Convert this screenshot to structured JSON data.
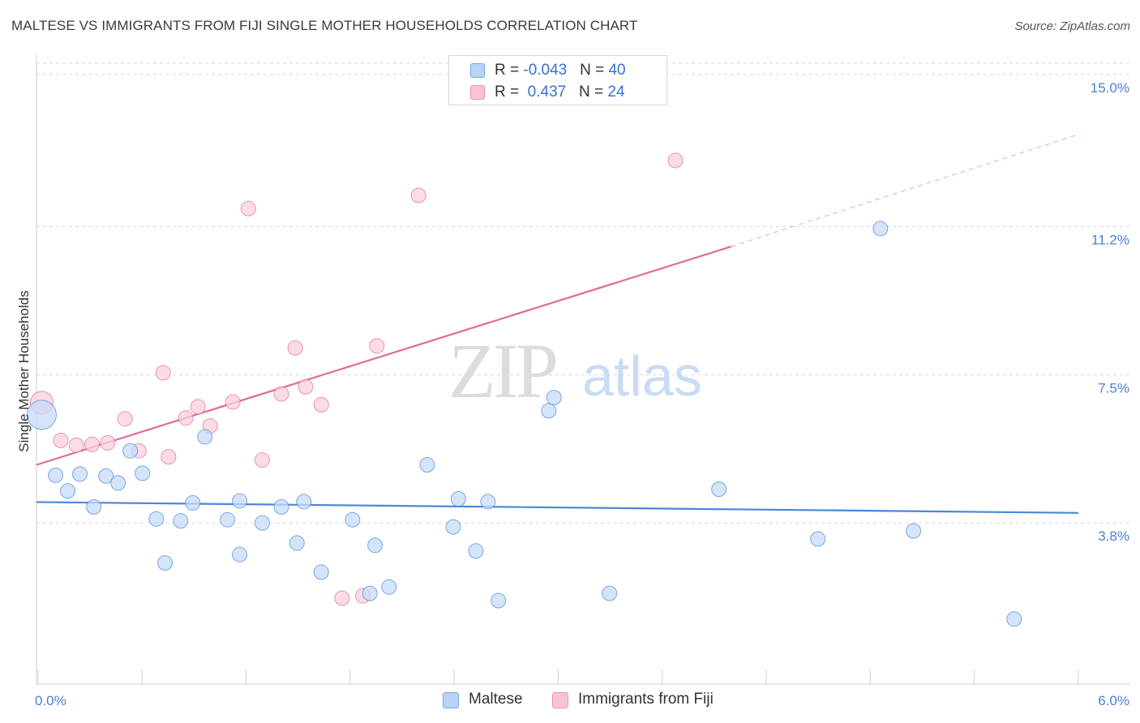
{
  "title": "MALTESE VS IMMIGRANTS FROM FIJI SINGLE MOTHER HOUSEHOLDS CORRELATION CHART",
  "source": "Source: ZipAtlas.com",
  "watermark": {
    "zip": "ZIP",
    "atlas": "atlas"
  },
  "legend_top": [
    {
      "r_label": "R = ",
      "r_value": "-0.043",
      "n_label": "N = ",
      "n_value": "40",
      "color": "#b8d3f5",
      "border": "#7aa6e0"
    },
    {
      "r_label": "R = ",
      "r_value": " 0.437",
      "n_label": "N = ",
      "n_value": "24",
      "color": "#f8c4d4",
      "border": "#e894ae"
    }
  ],
  "bottom_legend": [
    {
      "label": "Maltese",
      "color": "#b8d3f5",
      "border": "#7aa6e0"
    },
    {
      "label": "Immigrants from Fiji",
      "color": "#f8c4d4",
      "border": "#e894ae"
    }
  ],
  "chart_data": {
    "type": "scatter",
    "title": "MALTESE VS IMMIGRANTS FROM FIJI SINGLE MOTHER HOUSEHOLDS CORRELATION CHART",
    "xlabel": "",
    "ylabel": "Single Mother Households",
    "xlim": [
      0,
      6
    ],
    "ylim": [
      0.18,
      15.4
    ],
    "x_tick_labels": [
      "0.0%",
      "6.0%"
    ],
    "y_ticks": [
      3.8,
      7.5,
      11.2,
      15.0
    ],
    "y_tick_labels": [
      "3.8%",
      "7.5%",
      "11.2%",
      "15.0%"
    ],
    "grid": true,
    "legend_position": "top-center",
    "series": [
      {
        "name": "Maltese",
        "color": "#4a86d8",
        "fill": "#c5dbf7",
        "points": [
          [
            0.03,
            6.5,
            18
          ],
          [
            0.11,
            4.99,
            9
          ],
          [
            0.18,
            4.6,
            9
          ],
          [
            0.25,
            5.02,
            9
          ],
          [
            0.33,
            4.2,
            9
          ],
          [
            0.4,
            4.97,
            9
          ],
          [
            0.47,
            4.8,
            9
          ],
          [
            0.54,
            5.6,
            9
          ],
          [
            0.61,
            5.04,
            9
          ],
          [
            0.69,
            3.9,
            9
          ],
          [
            0.74,
            2.8,
            9
          ],
          [
            0.83,
            3.85,
            9
          ],
          [
            0.9,
            4.3,
            9
          ],
          [
            0.97,
            5.95,
            9
          ],
          [
            1.1,
            3.88,
            9
          ],
          [
            1.17,
            3.01,
            9
          ],
          [
            1.17,
            4.35,
            9
          ],
          [
            1.3,
            3.8,
            9
          ],
          [
            1.41,
            4.2,
            9
          ],
          [
            1.5,
            3.3,
            9
          ],
          [
            1.54,
            4.33,
            9
          ],
          [
            1.64,
            2.57,
            9
          ],
          [
            1.82,
            3.88,
            9
          ],
          [
            1.92,
            2.04,
            9
          ],
          [
            1.95,
            3.24,
            9
          ],
          [
            2.03,
            2.2,
            9
          ],
          [
            2.25,
            5.25,
            9
          ],
          [
            2.4,
            3.7,
            9
          ],
          [
            2.43,
            4.4,
            9
          ],
          [
            2.53,
            3.1,
            9
          ],
          [
            2.6,
            4.33,
            9
          ],
          [
            2.66,
            1.86,
            9
          ],
          [
            2.95,
            6.6,
            9
          ],
          [
            2.98,
            6.93,
            9
          ],
          [
            3.3,
            2.04,
            9
          ],
          [
            3.93,
            4.64,
            9
          ],
          [
            4.5,
            3.4,
            9
          ],
          [
            4.86,
            11.15,
            9
          ],
          [
            5.05,
            3.6,
            9
          ],
          [
            5.63,
            1.4,
            9
          ]
        ],
        "trend": {
          "x0": 0,
          "y0": 4.32,
          "x1": 6,
          "y1": 4.05
        }
      },
      {
        "name": "Immigrants from Fiji",
        "color": "#e26a93",
        "fill": "#f9d0dd",
        "points": [
          [
            0.03,
            6.8,
            14
          ],
          [
            0.14,
            5.86,
            9
          ],
          [
            0.23,
            5.74,
            9
          ],
          [
            0.32,
            5.76,
            9
          ],
          [
            0.41,
            5.8,
            9
          ],
          [
            0.51,
            6.4,
            9
          ],
          [
            0.59,
            5.6,
            9
          ],
          [
            0.73,
            7.55,
            9
          ],
          [
            0.76,
            5.45,
            9
          ],
          [
            0.86,
            6.42,
            9
          ],
          [
            0.93,
            6.7,
            9
          ],
          [
            1.0,
            6.22,
            9
          ],
          [
            1.13,
            6.82,
            9
          ],
          [
            1.22,
            11.65,
            9
          ],
          [
            1.3,
            5.37,
            9
          ],
          [
            1.41,
            7.02,
            9
          ],
          [
            1.49,
            8.17,
            9
          ],
          [
            1.55,
            7.2,
            9
          ],
          [
            1.64,
            6.75,
            9
          ],
          [
            1.76,
            1.92,
            9
          ],
          [
            1.88,
            1.98,
            9
          ],
          [
            1.96,
            8.22,
            9
          ],
          [
            2.2,
            11.98,
            9
          ],
          [
            3.68,
            12.85,
            9
          ]
        ],
        "trend": {
          "x0": 0,
          "y0": 5.25,
          "x1": 4.0,
          "y1": 10.7
        },
        "trend_extension": {
          "x0": 4.0,
          "y0": 10.7,
          "x1": 6,
          "y1": 13.5
        }
      }
    ]
  }
}
